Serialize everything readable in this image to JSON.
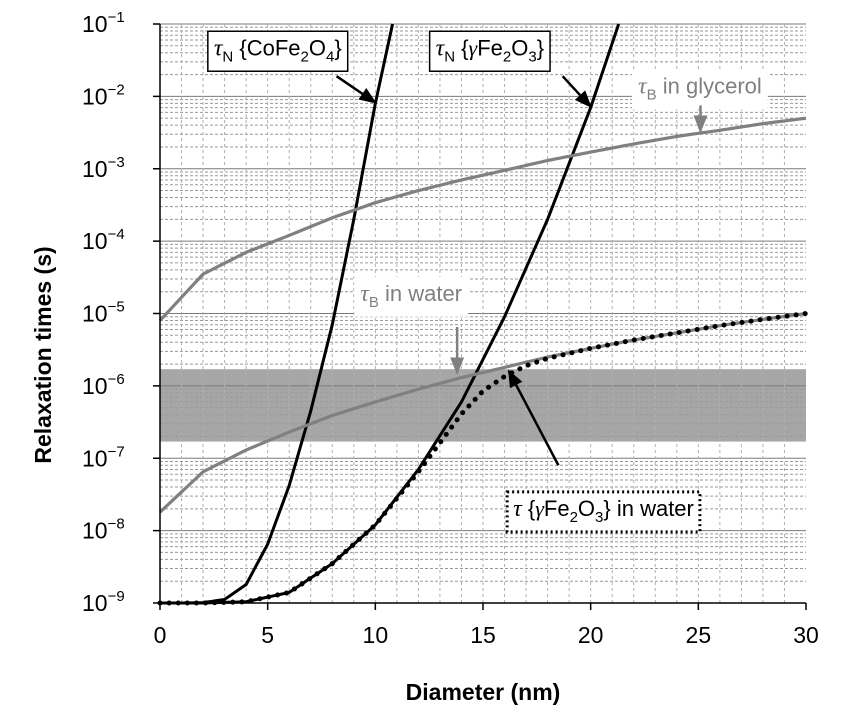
{
  "chart_data": {
    "type": "line",
    "xlabel": "Diameter (nm)",
    "ylabel": "Relaxation times (s)",
    "xlim": [
      0,
      30
    ],
    "ylim": [
      1e-09,
      0.1
    ],
    "yscale": "log",
    "grid": true,
    "x_ticks": [
      0,
      5,
      10,
      15,
      20,
      25,
      30
    ],
    "y_ticks": [
      {
        "value": 1e-09,
        "base": "10",
        "exp": "−9"
      },
      {
        "value": 1e-08,
        "base": "10",
        "exp": "−8"
      },
      {
        "value": 1e-07,
        "base": "10",
        "exp": "−7"
      },
      {
        "value": 1e-06,
        "base": "10",
        "exp": "−6"
      },
      {
        "value": 1e-05,
        "base": "10",
        "exp": "−5"
      },
      {
        "value": 0.0001,
        "base": "10",
        "exp": "−4"
      },
      {
        "value": 0.001,
        "base": "10",
        "exp": "−3"
      },
      {
        "value": 0.01,
        "base": "10",
        "exp": "−2"
      },
      {
        "value": 0.1,
        "base": "10",
        "exp": "−1"
      }
    ],
    "shaded_band": {
      "y_min": 1.7e-07,
      "y_max": 1.7e-06,
      "color": "#a6a6a6"
    },
    "series": [
      {
        "id": "neel-cofe2o4",
        "color": "#000000",
        "style": "solid",
        "x": [
          0,
          1,
          2,
          3,
          4,
          5,
          6,
          7,
          8,
          9,
          10,
          10.8
        ],
        "y": [
          1e-09,
          1.001e-09,
          1.01e-09,
          1.12e-09,
          1.8e-09,
          6.5e-09,
          4.2e-08,
          4.5e-07,
          7e-06,
          0.0002,
          0.008,
          0.1
        ]
      },
      {
        "id": "neel-gfe2o3",
        "color": "#000000",
        "style": "solid",
        "x": [
          0,
          2,
          4,
          6,
          8,
          10,
          12,
          14,
          16,
          18,
          20,
          21.3
        ],
        "y": [
          1e-09,
          1.001e-09,
          1.04e-09,
          1.4e-09,
          3.5e-09,
          1.2e-08,
          7e-08,
          6e-07,
          9e-06,
          0.0002,
          0.007,
          0.1
        ]
      },
      {
        "id": "brown-glycerol",
        "color": "#808080",
        "style": "solid",
        "x": [
          0,
          2,
          4,
          6,
          8,
          10,
          12,
          14,
          16,
          18,
          20,
          22,
          24,
          26,
          28,
          30
        ],
        "y": [
          8e-06,
          3.5e-05,
          7e-05,
          0.00012,
          0.00021,
          0.00034,
          0.0005,
          0.0007,
          0.00095,
          0.0013,
          0.0017,
          0.0022,
          0.0028,
          0.0034,
          0.0042,
          0.005
        ]
      },
      {
        "id": "brown-water",
        "color": "#808080",
        "style": "solid",
        "x": [
          0,
          2,
          4,
          6,
          8,
          10,
          12,
          14,
          16,
          18,
          20,
          22,
          24,
          26,
          28,
          30
        ],
        "y": [
          1.8e-08,
          6.5e-08,
          1.3e-07,
          2.3e-07,
          3.9e-07,
          6e-07,
          9e-07,
          1.3e-06,
          1.8e-06,
          2.5e-06,
          3.3e-06,
          4.3e-06,
          5.4e-06,
          6.8e-06,
          8.3e-06,
          1e-05
        ]
      },
      {
        "id": "effective-water",
        "color": "#000000",
        "style": "dotted",
        "x": [
          0,
          2,
          4,
          6,
          8,
          10,
          12,
          14,
          15,
          16,
          17,
          18,
          20,
          22,
          24,
          26,
          28,
          30
        ],
        "y": [
          1e-09,
          1.001e-09,
          1.04e-09,
          1.4e-09,
          3.5e-09,
          1.2e-08,
          6.5e-08,
          4.1e-07,
          8.5e-07,
          1.35e-06,
          1.9e-06,
          2.4e-06,
          3.3e-06,
          4.3e-06,
          5.4e-06,
          6.8e-06,
          8.3e-06,
          1e-05
        ]
      }
    ],
    "annotations": [
      {
        "id": "neel-cofe2o4",
        "symbol": "τ",
        "sub": "N",
        "text_parts": [
          {
            "t": " {CoFe",
            "sub": false
          },
          {
            "t": "2",
            "sub": true
          },
          {
            "t": "O",
            "sub": false
          },
          {
            "t": "4",
            "sub": true
          },
          {
            "t": "}",
            "sub": false
          }
        ],
        "color": "#000000",
        "border": "solid",
        "anchor": {
          "x": 2.5,
          "y": 0.037
        },
        "arrow_from": {
          "x": 8.2,
          "y": 0.019
        },
        "arrow_to": {
          "x": 10.0,
          "y": 0.0082
        }
      },
      {
        "id": "neel-gfe2o3",
        "symbol": "τ",
        "sub": "N",
        "text_parts": [
          {
            "t": " {",
            "sub": false
          },
          {
            "t": "γ",
            "sub": false,
            "greek": true
          },
          {
            "t": "Fe",
            "sub": false
          },
          {
            "t": "2",
            "sub": true
          },
          {
            "t": "O",
            "sub": false
          },
          {
            "t": "3",
            "sub": true
          },
          {
            "t": "}",
            "sub": false
          }
        ],
        "color": "#000000",
        "border": "solid",
        "anchor": {
          "x": 12.8,
          "y": 0.037
        },
        "arrow_from": {
          "x": 18.7,
          "y": 0.019
        },
        "arrow_to": {
          "x": 20.0,
          "y": 0.0072
        }
      },
      {
        "id": "brown-glycerol",
        "symbol": "τ",
        "sub": "B",
        "text_parts": [
          {
            "t": " in glycerol",
            "sub": false
          }
        ],
        "color": "#808080",
        "border": "none",
        "anchor": {
          "x": 22.2,
          "y": 0.011
        },
        "arrow_from": {
          "x": 25.1,
          "y": 0.0075
        },
        "arrow_to": {
          "x": 25.1,
          "y": 0.0033
        }
      },
      {
        "id": "brown-water",
        "symbol": "τ",
        "sub": "B",
        "text_parts": [
          {
            "t": " in water",
            "sub": false
          }
        ],
        "color": "#808080",
        "border": "none",
        "anchor": {
          "x": 9.3,
          "y": 1.5e-05
        },
        "arrow_from": {
          "x": 13.8,
          "y": 6.5e-06
        },
        "arrow_to": {
          "x": 13.8,
          "y": 1.5e-06
        }
      },
      {
        "id": "effective-water",
        "symbol": "τ",
        "sub": "",
        "text_parts": [
          {
            "t": " {",
            "sub": false
          },
          {
            "t": "γ",
            "sub": false,
            "greek": true
          },
          {
            "t": "Fe",
            "sub": false
          },
          {
            "t": "2",
            "sub": true
          },
          {
            "t": "O",
            "sub": false
          },
          {
            "t": "3",
            "sub": true
          },
          {
            "t": "} in water",
            "sub": false
          }
        ],
        "color": "#000000",
        "border": "dotted",
        "anchor": {
          "x": 16.4,
          "y": 1.6e-08
        },
        "arrow_from": {
          "x": 18.5,
          "y": 8e-08
        },
        "arrow_to": {
          "x": 16.2,
          "y": 1.6e-06
        }
      }
    ]
  }
}
